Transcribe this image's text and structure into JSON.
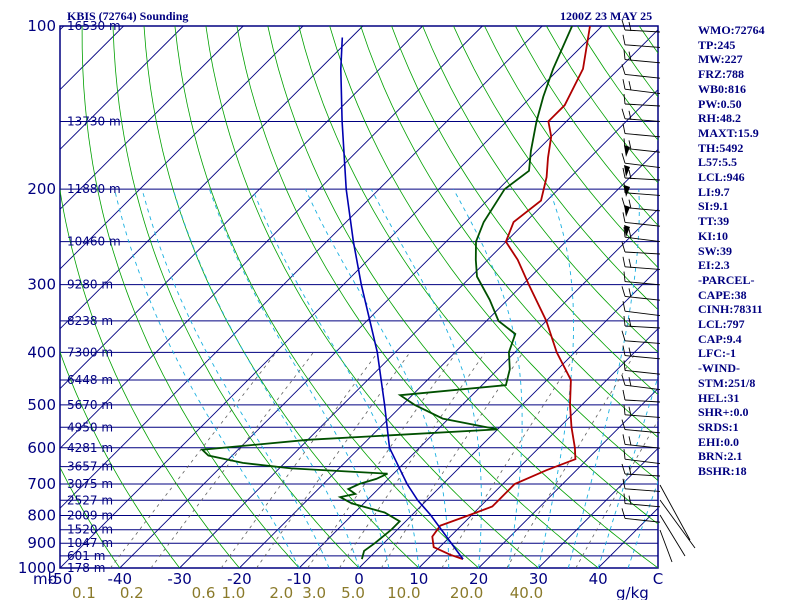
{
  "header": {
    "station": "KBIS (72764) Sounding",
    "time": "1200Z 23 MAY 25"
  },
  "indices": [
    "WMO:72764",
    "TP:245",
    "MW:227",
    "FRZ:788",
    "WB0:816",
    "PW:0.50",
    "RH:48.2",
    "MAXT:15.9",
    "TH:5492",
    "L57:5.5",
    "LCL:946",
    "LI:9.7",
    "SI:9.1",
    "TT:39",
    "KI:10",
    "SW:39",
    "EI:2.3",
    "-PARCEL-",
    "CAPE:38",
    "CINH:78311",
    "LCL:797",
    "CAP:9.4",
    "LFC:-1",
    "-WIND-",
    "STM:251/8",
    "HEL:31",
    "SHR+:0.0",
    "SRDS:1",
    "EHI:0.0",
    "BRN:2.1",
    "BSHR:18"
  ],
  "chart_data": {
    "type": "line",
    "diagram": "skew-T log-P",
    "y_scale": "log",
    "ylim": [
      1000,
      100
    ],
    "xlim": [
      -50,
      50
    ],
    "colors": {
      "border": "#000080",
      "isobar": "#000080",
      "isotherm": "#000080",
      "dry_adiabat": "#00a000",
      "moist_adiabat": "#1ab0e0",
      "mixing_ratio": "#606060",
      "temperature": "#b00000",
      "dewpoint": "#005000",
      "parcel": "#0000b0",
      "wind": "#000000"
    },
    "pressure_labels": [
      {
        "p": 100,
        "label": "100"
      },
      {
        "p": 200,
        "label": "200"
      },
      {
        "p": 300,
        "label": "300"
      },
      {
        "p": 400,
        "label": "400"
      },
      {
        "p": 500,
        "label": "500"
      },
      {
        "p": 600,
        "label": "600"
      },
      {
        "p": 700,
        "label": "700"
      },
      {
        "p": 800,
        "label": "800"
      },
      {
        "p": 900,
        "label": "900"
      },
      {
        "p": 1000,
        "label": "1000"
      }
    ],
    "pressure_axis_unit": "mb",
    "height_labels": [
      {
        "p": 100,
        "label": "16530 m"
      },
      {
        "p": 150,
        "label": "13730 m"
      },
      {
        "p": 200,
        "label": "11880 m"
      },
      {
        "p": 250,
        "label": "10460 m"
      },
      {
        "p": 300,
        "label": "9280 m"
      },
      {
        "p": 350,
        "label": "8238 m"
      },
      {
        "p": 400,
        "label": "7300 m"
      },
      {
        "p": 450,
        "label": "6448 m"
      },
      {
        "p": 500,
        "label": "5670 m"
      },
      {
        "p": 550,
        "label": "4950 m"
      },
      {
        "p": 600,
        "label": "4281 m"
      },
      {
        "p": 650,
        "label": "3657 m"
      },
      {
        "p": 700,
        "label": "3075 m"
      },
      {
        "p": 750,
        "label": "2527 m"
      },
      {
        "p": 800,
        "label": "2009 m"
      },
      {
        "p": 850,
        "label": "1520 m"
      },
      {
        "p": 900,
        "label": "1047 m"
      },
      {
        "p": 950,
        "label": "601 m"
      },
      {
        "p": 1000,
        "label": "178 m"
      }
    ],
    "temperature_ticks": [
      {
        "t": -50,
        "label": "-50"
      },
      {
        "t": -40,
        "label": "-40"
      },
      {
        "t": -30,
        "label": "-30"
      },
      {
        "t": -20,
        "label": "-20"
      },
      {
        "t": -10,
        "label": "-10"
      },
      {
        "t": 0,
        "label": "0"
      },
      {
        "t": 10,
        "label": "10"
      },
      {
        "t": 20,
        "label": "20"
      },
      {
        "t": 30,
        "label": "30"
      },
      {
        "t": 40,
        "label": "40"
      },
      {
        "t": 50,
        "label": "C"
      }
    ],
    "mixing_ratio_ticks": [
      {
        "t": -46,
        "label": "0.1"
      },
      {
        "t": -38,
        "label": "0.2"
      },
      {
        "t": -26,
        "label": "0.6"
      },
      {
        "t": -21,
        "label": "1.0"
      },
      {
        "t": -13,
        "label": "2.0"
      },
      {
        "t": -7.5,
        "label": "3.0"
      },
      {
        "t": -1,
        "label": "5.0"
      },
      {
        "t": 7.5,
        "label": "10.0"
      },
      {
        "t": 18,
        "label": "20.0"
      },
      {
        "t": 28,
        "label": "40.0"
      }
    ],
    "mixing_ratio_unit": "g/kg",
    "mixing_ratio_lines": [
      0.1,
      0.2,
      0.6,
      1.0,
      2.0,
      3.0,
      5.0,
      10.0,
      20.0,
      40.0
    ],
    "series": [
      {
        "key": "temperature",
        "points": [
          [
            963,
            15.9
          ],
          [
            945,
            13
          ],
          [
            915,
            9
          ],
          [
            875,
            7
          ],
          [
            835,
            6.5
          ],
          [
            800,
            9.5
          ],
          [
            770,
            12
          ],
          [
            700,
            12
          ],
          [
            660,
            15
          ],
          [
            630,
            18
          ],
          [
            600,
            16
          ],
          [
            550,
            12
          ],
          [
            500,
            8
          ],
          [
            450,
            4
          ],
          [
            400,
            -3
          ],
          [
            350,
            -10
          ],
          [
            300,
            -19
          ],
          [
            270,
            -25
          ],
          [
            250,
            -30
          ],
          [
            230,
            -32
          ],
          [
            210,
            -31
          ],
          [
            190,
            -34
          ],
          [
            175,
            -37
          ],
          [
            160,
            -40
          ],
          [
            150,
            -43
          ],
          [
            140,
            -43
          ],
          [
            120,
            -46
          ],
          [
            100,
            -52
          ]
        ]
      },
      {
        "key": "dewpoint",
        "points": [
          [
            963,
            -1
          ],
          [
            930,
            -2
          ],
          [
            900,
            -1.5
          ],
          [
            850,
            -1
          ],
          [
            820,
            -1
          ],
          [
            790,
            -5
          ],
          [
            760,
            -12
          ],
          [
            740,
            -15
          ],
          [
            730,
            -13
          ],
          [
            715,
            -15
          ],
          [
            700,
            -14
          ],
          [
            685,
            -12
          ],
          [
            670,
            -11
          ],
          [
            655,
            -28
          ],
          [
            640,
            -37
          ],
          [
            620,
            -44
          ],
          [
            605,
            -46
          ],
          [
            580,
            -30
          ],
          [
            555,
            0
          ],
          [
            530,
            -11
          ],
          [
            500,
            -18
          ],
          [
            480,
            -22
          ],
          [
            460,
            -6
          ],
          [
            430,
            -8
          ],
          [
            400,
            -11
          ],
          [
            370,
            -13
          ],
          [
            350,
            -18
          ],
          [
            320,
            -23
          ],
          [
            290,
            -29
          ],
          [
            270,
            -32
          ],
          [
            250,
            -35
          ],
          [
            230,
            -37
          ],
          [
            200,
            -39
          ],
          [
            185,
            -38
          ],
          [
            170,
            -41
          ],
          [
            150,
            -45
          ],
          [
            135,
            -48
          ],
          [
            120,
            -51
          ],
          [
            100,
            -55
          ]
        ]
      },
      {
        "key": "parcel",
        "points": [
          [
            963,
            15.9
          ],
          [
            797,
            3.0
          ],
          [
            750,
            -1.5
          ],
          [
            700,
            -6
          ],
          [
            600,
            -15
          ],
          [
            500,
            -23
          ],
          [
            400,
            -33
          ],
          [
            350,
            -39.5
          ],
          [
            300,
            -47
          ],
          [
            250,
            -55.5
          ],
          [
            200,
            -65.5
          ],
          [
            150,
            -77.5
          ],
          [
            120,
            -86.5
          ],
          [
            105,
            -91.5
          ]
        ]
      }
    ]
  }
}
